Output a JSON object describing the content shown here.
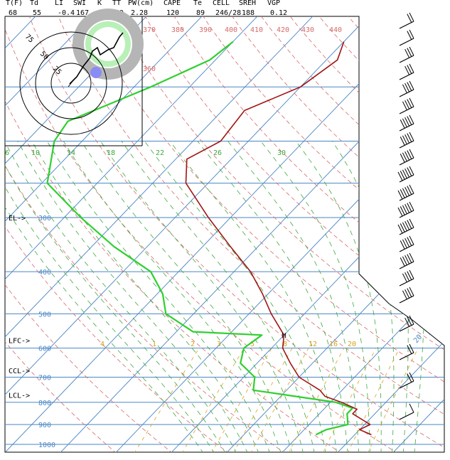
{
  "header": {
    "labels": [
      "T(F)",
      "Td",
      "LI",
      "SWI",
      "K",
      "TT",
      "PW(cm)",
      "CAPE",
      "Te",
      "CELL",
      "SREH",
      "VGP"
    ],
    "values": [
      "68",
      "55",
      "-0.4",
      "167",
      "19",
      "49",
      "2.28",
      "120",
      "89",
      "246/28",
      "188",
      "0.12"
    ]
  },
  "colors": {
    "temperature": "#a01515",
    "dewpoint": "#2fcf2f",
    "isotherm": "#4a86c5",
    "dry_adiabat": "#d66a6a",
    "moist_adiabat": "#3ea83e",
    "mixing_ratio": "#d9a21a",
    "hodograph_ring": "#b5b5b5"
  },
  "chart_data": {
    "type": "line",
    "pressure_labels": [
      "300",
      "400",
      "500",
      "600",
      "700",
      "800",
      "900",
      "1000"
    ],
    "pressure_levels": [
      300,
      400,
      500,
      600,
      700,
      800,
      900,
      1000
    ],
    "isotherm_labels": [
      "-30",
      "-20",
      "-10",
      "0",
      "10",
      "20",
      "30"
    ],
    "isotherm_values": [
      -30,
      -20,
      -10,
      0,
      10,
      20,
      30
    ],
    "dry_adiabat_labels": [
      "360",
      "370",
      "380",
      "390",
      "400",
      "410",
      "420",
      "430",
      "440"
    ],
    "moist_adiabat_labels": [
      "6",
      "10",
      "14",
      "18",
      "22",
      "26",
      "30"
    ],
    "mixing_ratio_labels": [
      "4",
      "1",
      "2",
      "3",
      "5",
      "8",
      "12",
      "16",
      "20"
    ],
    "annotations": [
      {
        "text": "EL->",
        "pressure": 300
      },
      {
        "text": "LFC->",
        "pressure": 575
      },
      {
        "text": "CCL->",
        "pressure": 675
      },
      {
        "text": "LCL->",
        "pressure": 770
      }
    ],
    "max_marker": "M",
    "temperature_profile": [
      {
        "p": 950,
        "t": 23
      },
      {
        "p": 925,
        "t": 20
      },
      {
        "p": 900,
        "t": 21
      },
      {
        "p": 850,
        "t": 16
      },
      {
        "p": 830,
        "t": 16
      },
      {
        "p": 800,
        "t": 12
      },
      {
        "p": 775,
        "t": 8
      },
      {
        "p": 750,
        "t": 6
      },
      {
        "p": 700,
        "t": 0
      },
      {
        "p": 650,
        "t": -4
      },
      {
        "p": 600,
        "t": -8
      },
      {
        "p": 560,
        "t": -10
      },
      {
        "p": 500,
        "t": -16
      },
      {
        "p": 450,
        "t": -21
      },
      {
        "p": 400,
        "t": -27
      },
      {
        "p": 350,
        "t": -35
      },
      {
        "p": 300,
        "t": -44
      },
      {
        "p": 250,
        "t": -54
      },
      {
        "p": 220,
        "t": -58
      },
      {
        "p": 200,
        "t": -55
      },
      {
        "p": 170,
        "t": -56
      },
      {
        "p": 150,
        "t": -50
      },
      {
        "p": 130,
        "t": -48
      },
      {
        "p": 118,
        "t": -50
      }
    ],
    "dewpoint_profile": [
      {
        "p": 950,
        "t": 13
      },
      {
        "p": 925,
        "t": 14
      },
      {
        "p": 900,
        "t": 17
      },
      {
        "p": 850,
        "t": 15
      },
      {
        "p": 825,
        "t": 15
      },
      {
        "p": 800,
        "t": 11
      },
      {
        "p": 750,
        "t": -6
      },
      {
        "p": 700,
        "t": -8
      },
      {
        "p": 650,
        "t": -13
      },
      {
        "p": 600,
        "t": -15
      },
      {
        "p": 560,
        "t": -14
      },
      {
        "p": 550,
        "t": -27
      },
      {
        "p": 500,
        "t": -35
      },
      {
        "p": 450,
        "t": -39
      },
      {
        "p": 400,
        "t": -45
      },
      {
        "p": 350,
        "t": -56
      },
      {
        "p": 300,
        "t": -67
      },
      {
        "p": 250,
        "t": -79
      },
      {
        "p": 200,
        "t": -85
      },
      {
        "p": 180,
        "t": -86
      },
      {
        "p": 150,
        "t": -77
      },
      {
        "p": 130,
        "t": -71
      },
      {
        "p": 118,
        "t": -70
      }
    ],
    "hodograph": {
      "ring_labels": [
        "25",
        "50",
        "75"
      ],
      "speed_rings": [
        25,
        50,
        75
      ]
    },
    "wind_barbs": [
      {
        "speed": 15
      },
      {
        "speed": 20
      },
      {
        "speed": 25
      },
      {
        "speed": 30
      },
      {
        "speed": 35
      },
      {
        "speed": 40
      },
      {
        "speed": 45
      },
      {
        "speed": 45
      },
      {
        "speed": 50
      },
      {
        "speed": 55
      },
      {
        "speed": 55
      },
      {
        "speed": 60
      },
      {
        "speed": 60
      },
      {
        "speed": 50
      },
      {
        "speed": 45
      },
      {
        "speed": 40
      },
      {
        "speed": 35
      },
      {
        "speed": 25
      },
      {
        "speed": 20
      },
      {
        "speed": 15
      },
      {
        "speed": 10
      }
    ]
  }
}
